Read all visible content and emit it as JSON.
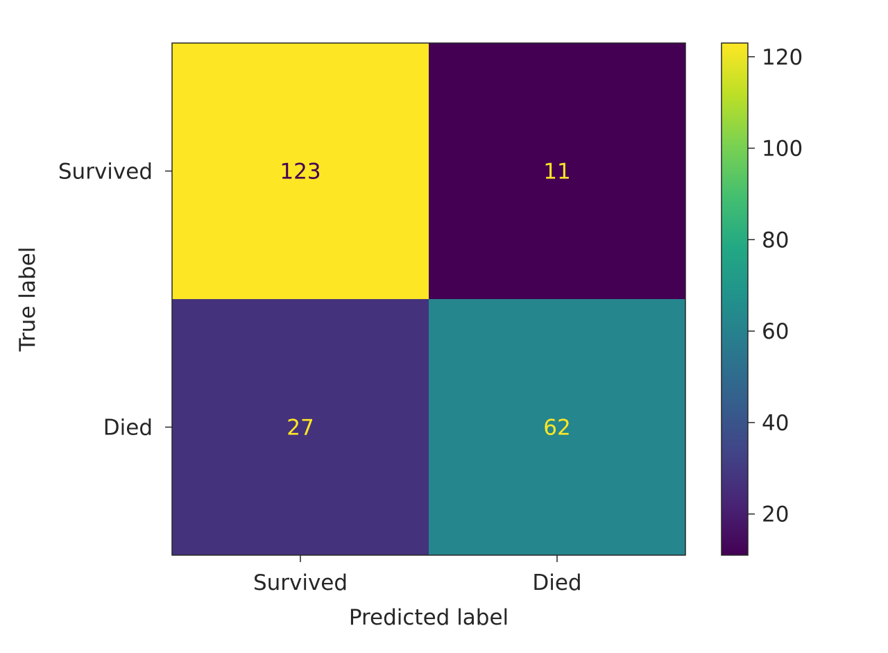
{
  "chart_data": {
    "type": "heatmap",
    "title": "",
    "xlabel": "Predicted label",
    "ylabel": "True label",
    "x_categories": [
      "Survived",
      "Died"
    ],
    "y_categories": [
      "Survived",
      "Died"
    ],
    "values": [
      [
        123,
        11
      ],
      [
        27,
        62
      ]
    ],
    "colormap": "viridis",
    "colorbar": {
      "vmin": 11,
      "vmax": 123,
      "ticks": [
        20,
        40,
        60,
        80,
        100,
        120
      ]
    },
    "grid": false
  }
}
